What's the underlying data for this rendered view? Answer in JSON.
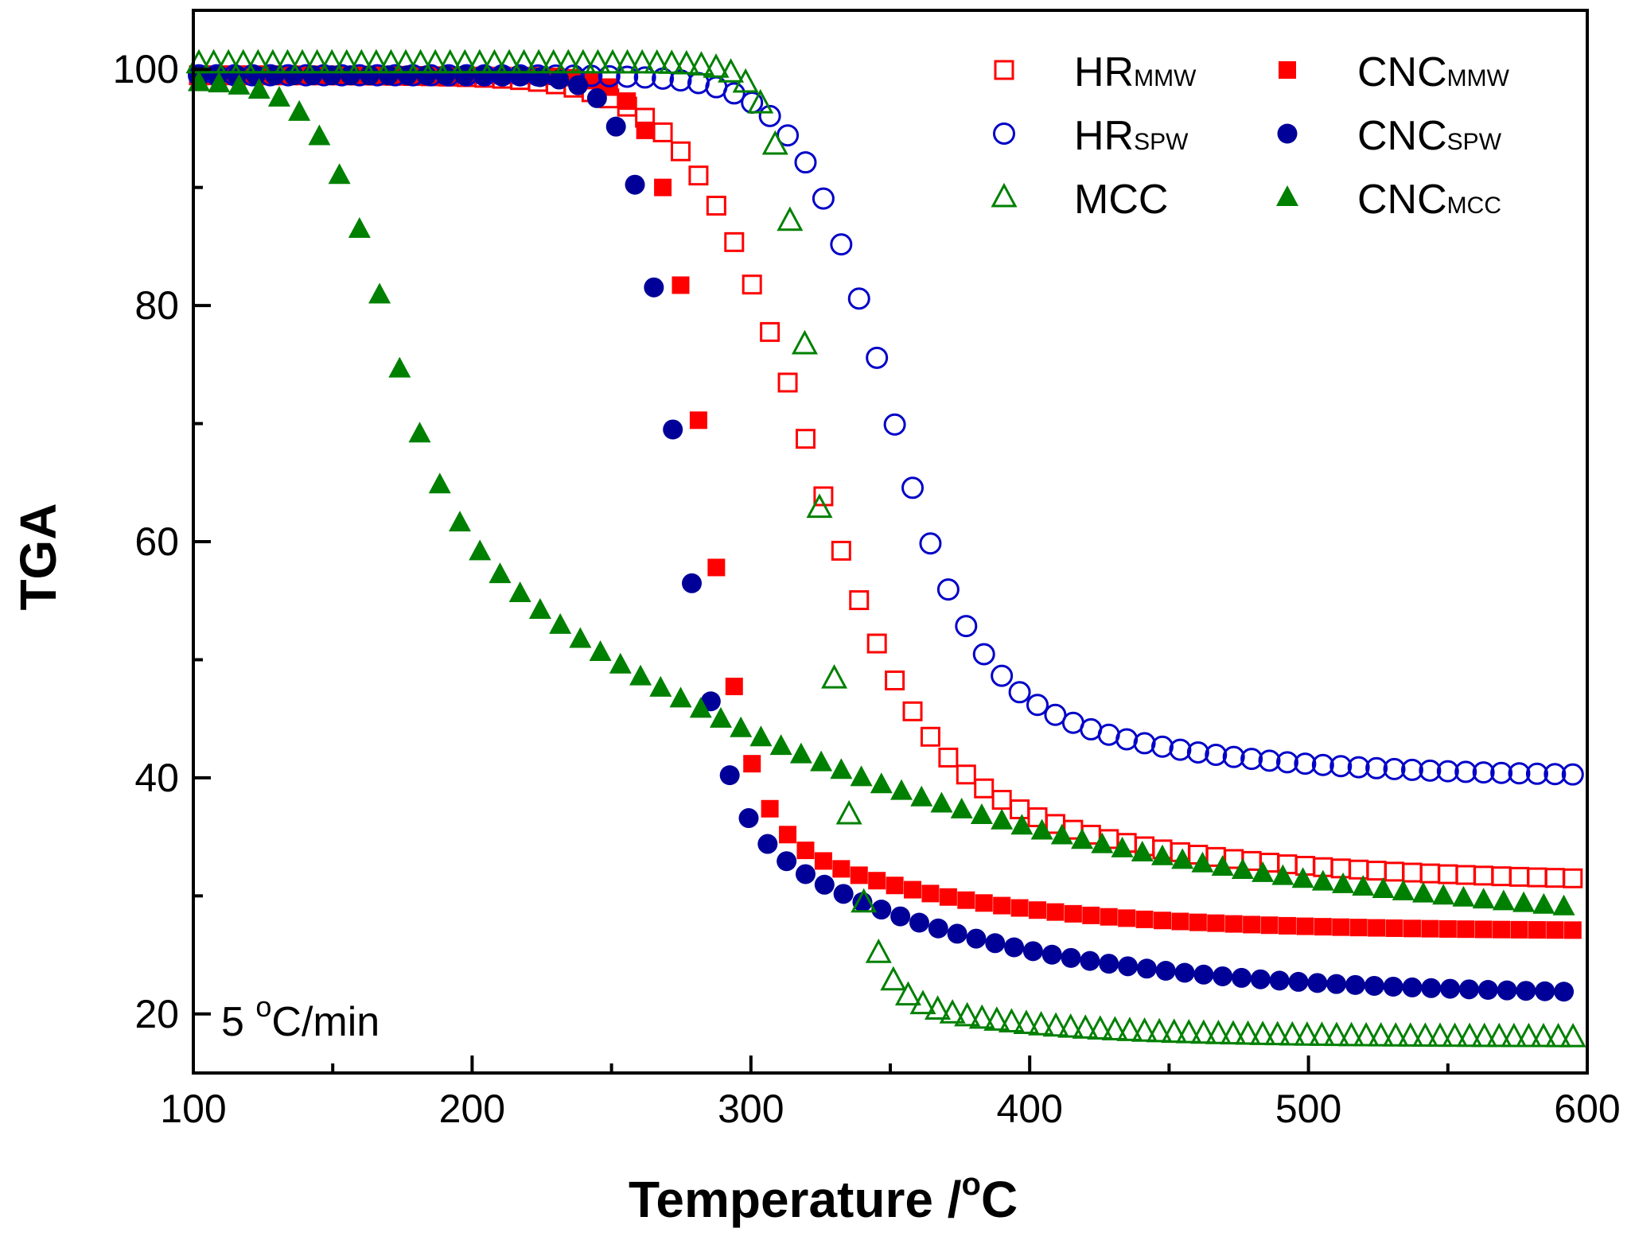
{
  "chart_data": {
    "type": "scatter",
    "title": "",
    "xlabel": "Temperature / °C",
    "xlabel_main": "Temperature /",
    "xlabel_deg": "o",
    "xlabel_unit": "C",
    "ylabel": "TGA",
    "xlim": [
      100,
      600
    ],
    "ylim": [
      15,
      105
    ],
    "xticks": [
      100,
      200,
      300,
      400,
      500,
      600
    ],
    "yticks": [
      20,
      40,
      60,
      80,
      100
    ],
    "grid": false,
    "legend_position": "top-right",
    "annotation": {
      "prefix": "5 ",
      "deg": "o",
      "suffix": "C/min"
    },
    "series": [
      {
        "name": "HRMMW",
        "base": "HR",
        "sub": "MMW",
        "marker": "square",
        "filled": false,
        "color": "#ff0000",
        "x0": 102,
        "step": 6.4,
        "t0": 315,
        "w": 20,
        "y_start": 99.5,
        "resid": 31,
        "tail_drop": 14,
        "tail_k": 0.012
      },
      {
        "name": "CNCMMW",
        "base": "CNC",
        "sub": "MMW",
        "marker": "square",
        "filled": true,
        "color": "#ff0000",
        "x0": 102,
        "step": 6.4,
        "t0": 282,
        "w": 8,
        "y_start": 99.5,
        "resid": 27,
        "tail_drop": 11,
        "tail_k": 0.015
      },
      {
        "name": "HRSPW",
        "base": "HR",
        "sub": "SPW",
        "marker": "circle",
        "filled": false,
        "color": "#0000c8",
        "x0": 102,
        "step": 6.4,
        "t0": 345,
        "w": 15,
        "y_start": 99.5,
        "resid": 40,
        "tail_drop": 12,
        "tail_k": 0.015
      },
      {
        "name": "CNCSPW",
        "base": "CNC",
        "sub": "SPW",
        "marker": "circle",
        "filled": true,
        "color": "#000099",
        "x0": 102,
        "step": 6.8,
        "t0": 272,
        "w": 8,
        "y_start": 99.5,
        "resid": 21.5,
        "tail_drop": 18,
        "tail_k": 0.012
      },
      {
        "name": "MCC",
        "base": "MCC",
        "sub": "",
        "marker": "triangle",
        "filled": false,
        "color": "#008000",
        "x0": 102,
        "step": 5.3,
        "t0": 325,
        "w": 7,
        "y_start": 100.5,
        "resid": 18,
        "tail_drop": 5,
        "tail_k": 0.02
      },
      {
        "name": "CNCMCC",
        "base": "CNC",
        "sub": "MCC",
        "marker": "triangle",
        "filled": true,
        "color": "#008000",
        "x0": 102,
        "step": 7.2,
        "t0": 165,
        "w": 11,
        "y_start": 99,
        "resid": 26,
        "tail_drop": 40,
        "tail_k": 0.006
      }
    ]
  }
}
